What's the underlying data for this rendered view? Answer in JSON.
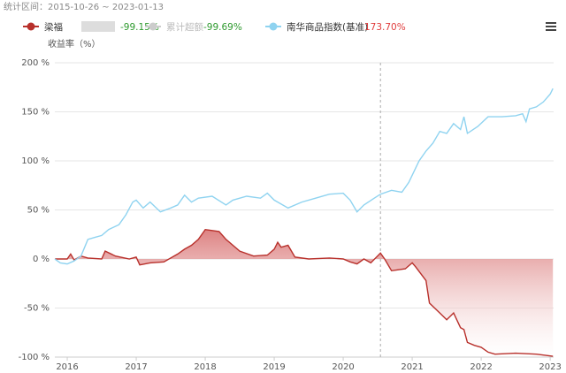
{
  "period_label": "统计区间：2015-10-26 ~ 2023-01-13",
  "chart_data": {
    "type": "line",
    "y_axis_label": "收益率（%）",
    "xlim": [
      2015.82,
      2023.05
    ],
    "xticks": [
      2016,
      2017,
      2018,
      2019,
      2020,
      2021,
      2022,
      2023
    ],
    "ylim": [
      -100,
      200
    ],
    "yticks": [
      {
        "value": -100,
        "label": "-100 %"
      },
      {
        "value": -50,
        "label": "-50 %"
      },
      {
        "value": 0,
        "label": "0 %"
      },
      {
        "value": 50,
        "label": "50 %"
      },
      {
        "value": 100,
        "label": "100 %"
      },
      {
        "value": 150,
        "label": "150 %"
      },
      {
        "value": 200,
        "label": "200 %"
      }
    ],
    "grid": true,
    "crosshair_x": 2020.54,
    "series": [
      {
        "name": "梁福",
        "color": "#b8302b",
        "area": true,
        "visible": true,
        "total_label": "-99.15%",
        "total_color": "#2e9a2e",
        "x": [
          2015.82,
          2016.0,
          2016.05,
          2016.1,
          2016.2,
          2016.3,
          2016.5,
          2016.55,
          2016.7,
          2016.9,
          2017.0,
          2017.05,
          2017.2,
          2017.4,
          2017.6,
          2017.7,
          2017.8,
          2017.9,
          2018.0,
          2018.1,
          2018.2,
          2018.3,
          2018.5,
          2018.7,
          2018.9,
          2019.0,
          2019.05,
          2019.1,
          2019.2,
          2019.3,
          2019.5,
          2019.8,
          2020.0,
          2020.1,
          2020.2,
          2020.3,
          2020.4,
          2020.54,
          2020.6,
          2020.7,
          2020.9,
          2021.0,
          2021.05,
          2021.2,
          2021.25,
          2021.4,
          2021.5,
          2021.6,
          2021.7,
          2021.75,
          2021.8,
          2021.9,
          2022.0,
          2022.1,
          2022.2,
          2022.5,
          2022.8,
          2023.04
        ],
        "values": [
          0,
          0,
          5,
          -1,
          3,
          1,
          0,
          8,
          3,
          0,
          2,
          -6,
          -4,
          -3,
          5,
          10,
          14,
          20,
          30,
          29,
          28,
          20,
          8,
          3,
          4,
          10,
          17,
          12,
          14,
          2,
          0,
          1,
          0,
          -3,
          -5,
          0,
          -4,
          6,
          0,
          -12,
          -10,
          -4,
          -8,
          -22,
          -45,
          -55,
          -62,
          -55,
          -70,
          -72,
          -85,
          -88,
          -90,
          -95,
          -97,
          -96,
          -97,
          -99.15
        ]
      },
      {
        "name": "累计超额",
        "color": "#cccccc",
        "visible": false,
        "total_label": "-99.69%",
        "total_color": "#2e9a2e"
      },
      {
        "name": "南华商品指数(基准)",
        "color": "#8fd3f0",
        "visible": true,
        "total_label": "173.70%",
        "total_color": "#e03c3c",
        "x": [
          2015.82,
          2015.9,
          2016.0,
          2016.1,
          2016.2,
          2016.3,
          2016.4,
          2016.5,
          2016.6,
          2016.75,
          2016.85,
          2016.95,
          2017.0,
          2017.1,
          2017.2,
          2017.35,
          2017.5,
          2017.6,
          2017.7,
          2017.8,
          2017.9,
          2018.1,
          2018.3,
          2018.4,
          2018.6,
          2018.8,
          2018.9,
          2019.0,
          2019.2,
          2019.4,
          2019.6,
          2019.8,
          2020.0,
          2020.1,
          2020.2,
          2020.3,
          2020.45,
          2020.54,
          2020.7,
          2020.85,
          2020.95,
          2021.1,
          2021.2,
          2021.3,
          2021.4,
          2021.5,
          2021.6,
          2021.7,
          2021.75,
          2021.8,
          2021.95,
          2022.1,
          2022.3,
          2022.5,
          2022.6,
          2022.65,
          2022.7,
          2022.8,
          2022.9,
          2023.0,
          2023.04
        ],
        "values": [
          0,
          -4,
          -5,
          -2,
          3,
          20,
          22,
          24,
          30,
          35,
          45,
          58,
          60,
          52,
          58,
          48,
          52,
          55,
          65,
          58,
          62,
          64,
          55,
          60,
          64,
          62,
          67,
          60,
          52,
          58,
          62,
          66,
          67,
          60,
          48,
          55,
          62,
          66,
          70,
          68,
          78,
          100,
          110,
          118,
          130,
          128,
          138,
          132,
          145,
          128,
          135,
          145,
          145,
          146,
          148,
          140,
          153,
          155,
          160,
          168,
          173.7
        ]
      }
    ]
  }
}
